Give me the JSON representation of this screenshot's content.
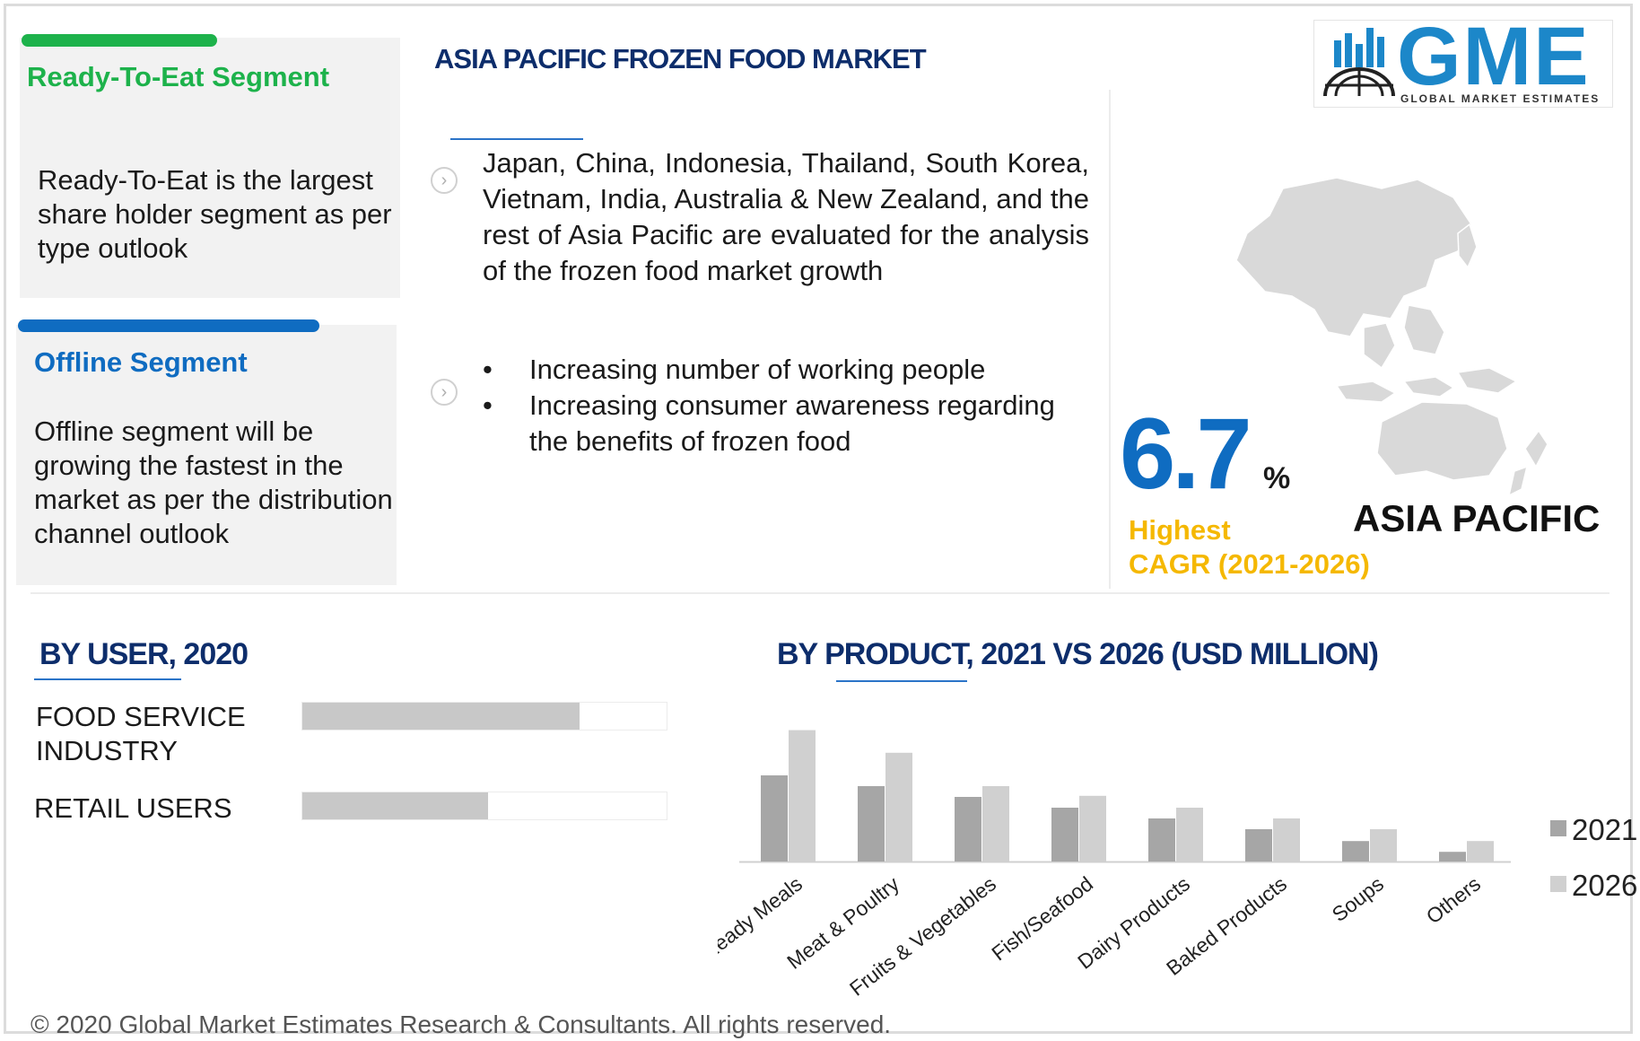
{
  "segments": {
    "ready_to_eat": {
      "title": "Ready-To-Eat Segment",
      "body": "Ready-To-Eat is the largest share holder segment as per type outlook"
    },
    "offline": {
      "title": "Offline Segment",
      "body": "Offline segment will be growing the fastest in the market as per the distribution channel outlook"
    }
  },
  "header": {
    "title": "ASIA PACIFIC FROZEN FOOD MARKET"
  },
  "intro": "Japan, China, Indonesia, Thailand, South Korea, Vietnam, India, Australia & New Zealand, and the rest of Asia Pacific are evaluated for the analysis of the frozen food market growth",
  "drivers": [
    "Increasing number of working people",
    "Increasing consumer awareness regarding the benefits of frozen food"
  ],
  "logo": {
    "text": "GME",
    "tagline": "GLOBAL MARKET ESTIMATES"
  },
  "cagr": {
    "value": "6.7",
    "unit": "%",
    "label_line1": "Highest",
    "label_line2": "CAGR (2021-2026)",
    "region": "ASIA PACIFIC"
  },
  "colors": {
    "green": "#1db24b",
    "blue": "#0f6cc1",
    "navy": "#0d2d6b",
    "yellow": "#f5b800",
    "bar_2021": "#a6a6a6",
    "bar_2026": "#d0d0d0"
  },
  "by_user": {
    "title": "BY  USER, 2020",
    "items": [
      {
        "label": "FOOD SERVICE INDUSTRY",
        "share": 0.76
      },
      {
        "label": "RETAIL USERS",
        "share": 0.51
      }
    ]
  },
  "chart_data": {
    "type": "bar",
    "title": "BY PRODUCT, 2021 VS 2026 (USD MILLION)",
    "categories": [
      "Ready Meals",
      "Meat & Poultry",
      "Fruits & Vegetables",
      "Fish/Seafood",
      "Dairy Products",
      "Baked Products",
      "Soups",
      "Others"
    ],
    "series": [
      {
        "name": "2021",
        "values": [
          80,
          70,
          60,
          50,
          40,
          30,
          19,
          9
        ]
      },
      {
        "name": "2026",
        "values": [
          122,
          101,
          70,
          61,
          50,
          40,
          30,
          19
        ]
      }
    ],
    "xlabel": "",
    "ylabel": "",
    "ylim": [
      0,
      125
    ],
    "grid": false,
    "legend": "right"
  },
  "copyright": "© 2020 Global Market Estimates Research & Consultants. All rights reserved."
}
